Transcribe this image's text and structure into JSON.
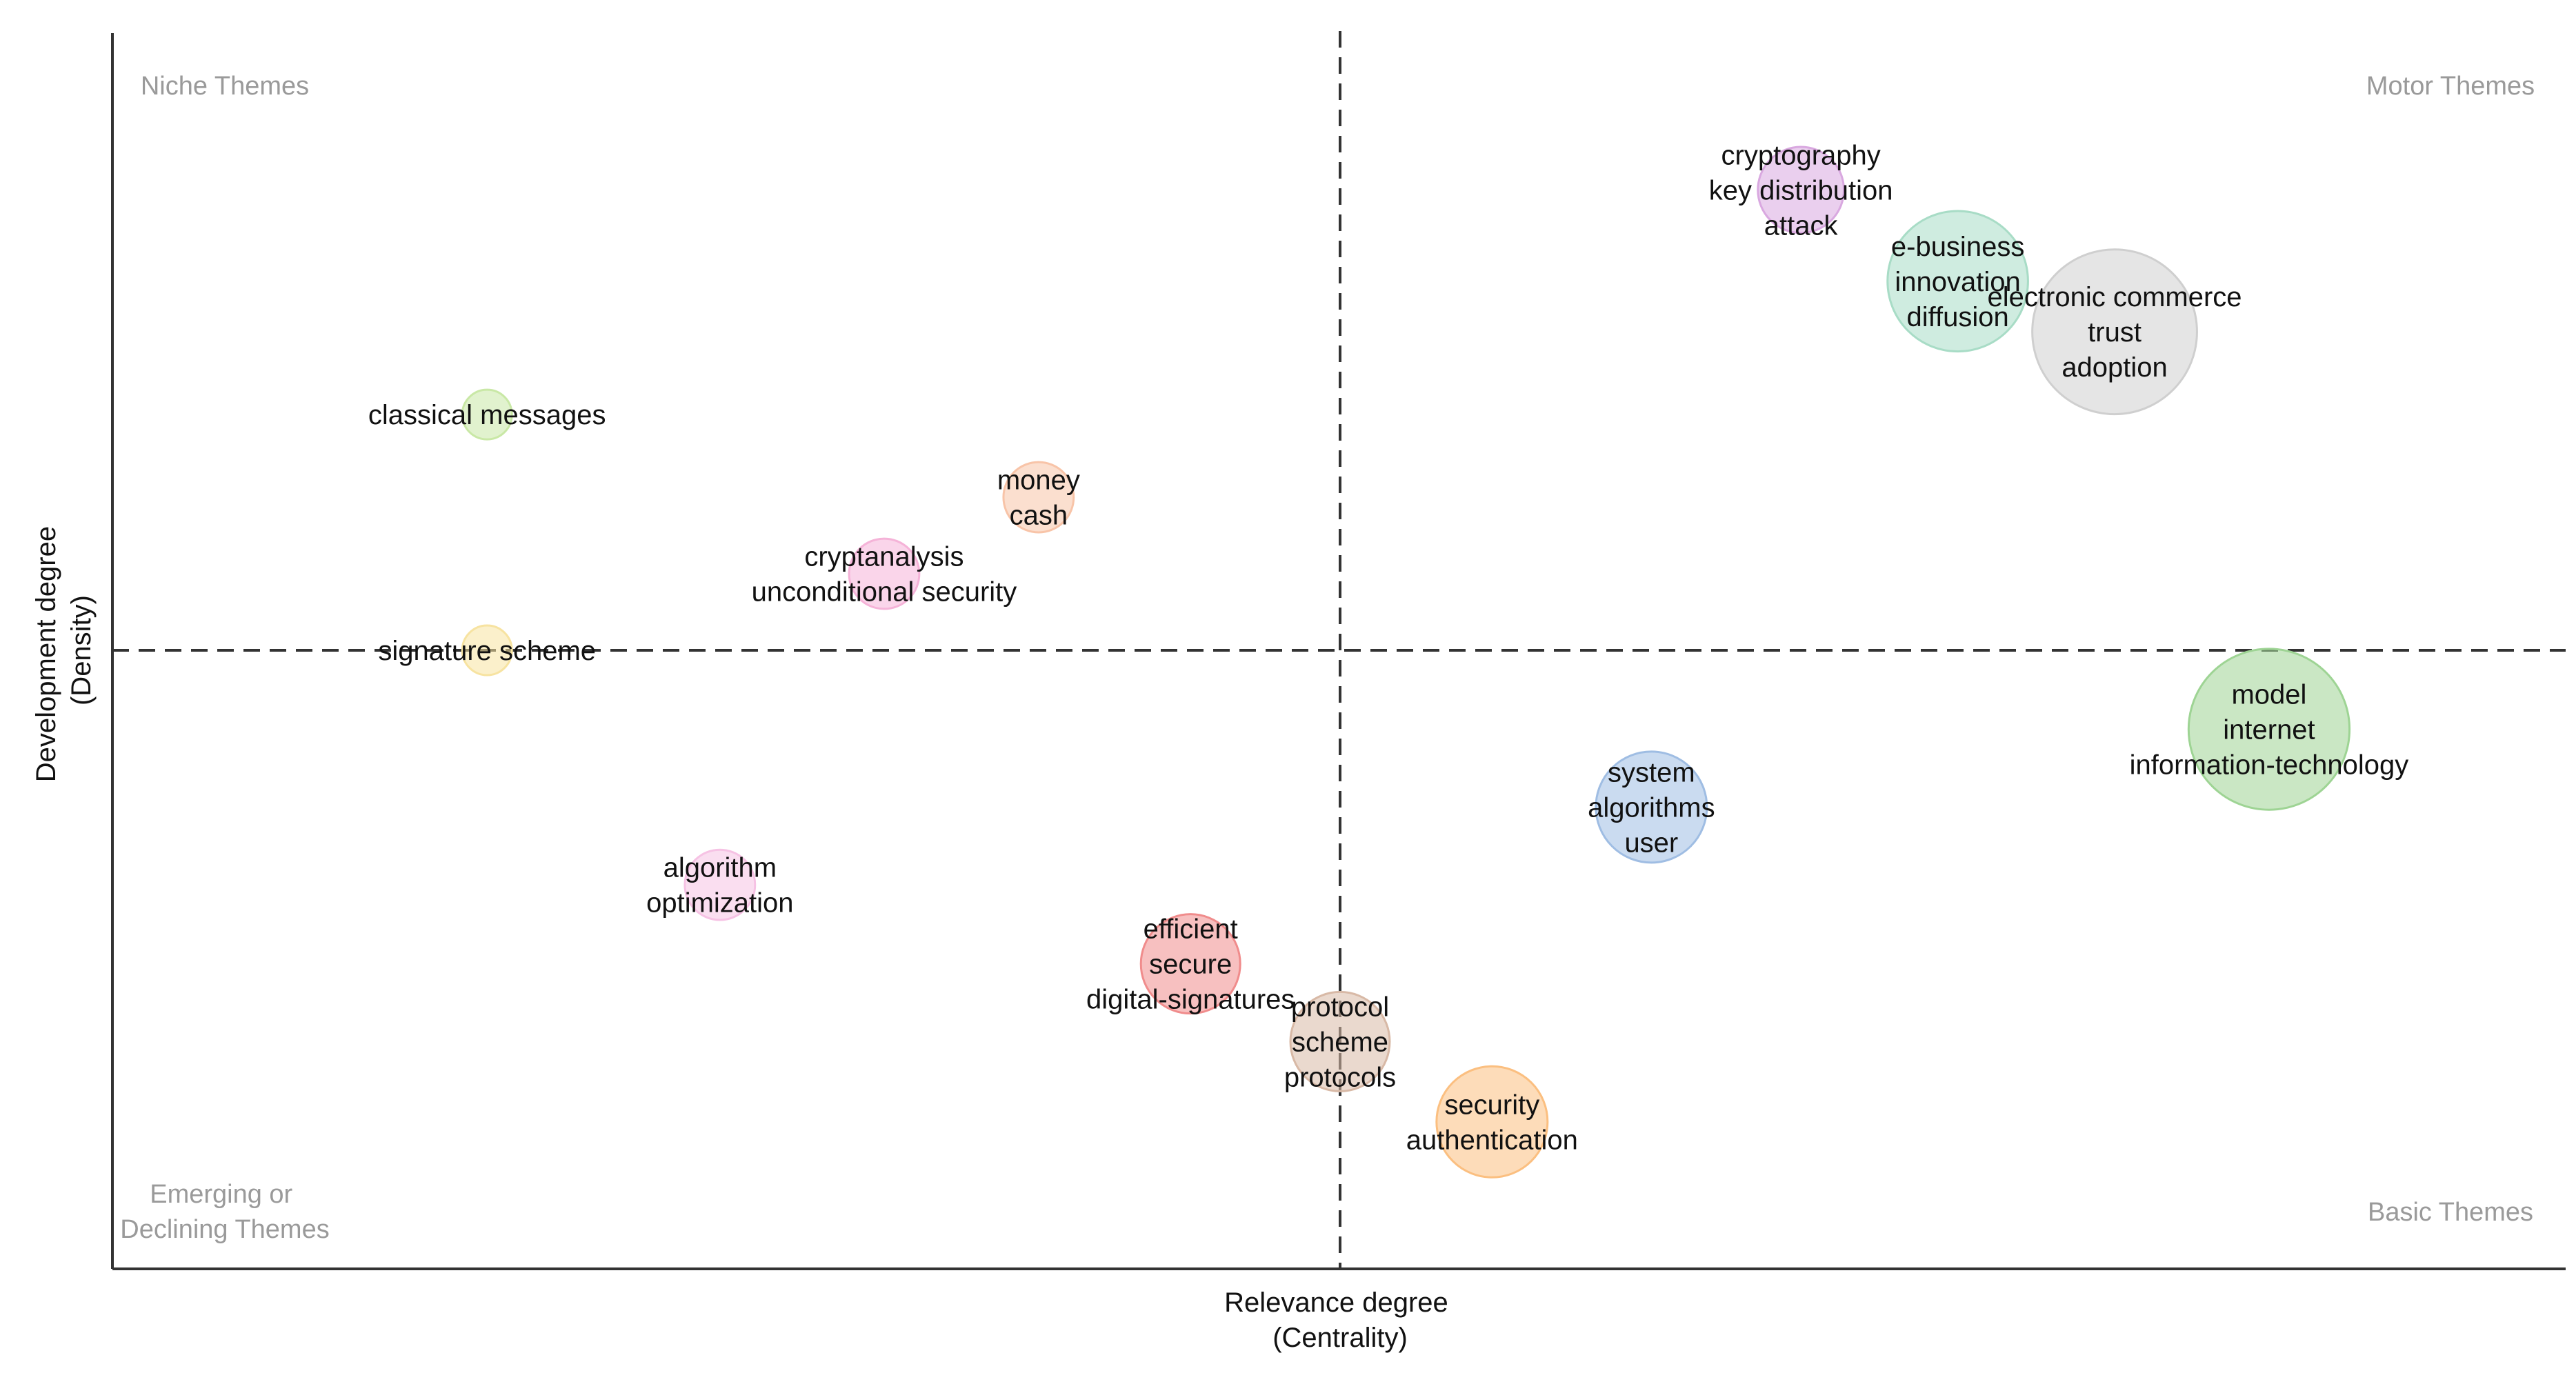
{
  "chart_data": {
    "type": "scatter",
    "title": "",
    "xlabel": [
      "Relevance degree",
      "(Centrality)"
    ],
    "ylabel": [
      "Development degree",
      "(Density)"
    ],
    "xlim": [
      0,
      100
    ],
    "ylim": [
      0,
      100
    ],
    "x_threshold": 50,
    "y_threshold": 50,
    "grid": false,
    "legend": "none",
    "quadrants": {
      "top_left": [
        "Niche Themes"
      ],
      "top_right": [
        "Motor Themes"
      ],
      "bottom_left": [
        "Emerging or",
        "Declining Themes"
      ],
      "bottom_right": [
        "Basic Themes"
      ]
    },
    "clusters": [
      {
        "labels": [
          "classical messages"
        ],
        "x": 15.2,
        "y": 69.1,
        "size": 1,
        "color": "#c9e8a6"
      },
      {
        "labels": [
          "money",
          "cash"
        ],
        "x": 37.7,
        "y": 62.4,
        "size": 2,
        "color": "#f8c4a8"
      },
      {
        "labels": [
          "cryptanalysis",
          "unconditional security"
        ],
        "x": 31.4,
        "y": 56.2,
        "size": 2,
        "color": "#f5b3d8"
      },
      {
        "labels": [
          "signature scheme"
        ],
        "x": 15.2,
        "y": 50.0,
        "size": 1,
        "color": "#f7e3a1"
      },
      {
        "labels": [
          "algorithm",
          "optimization"
        ],
        "x": 24.7,
        "y": 31.0,
        "size": 2,
        "color": "#f6c2e4"
      },
      {
        "labels": [
          "efficient",
          "secure",
          "digital-signatures"
        ],
        "x": 43.9,
        "y": 24.6,
        "size": 4,
        "color": "#f08c8c"
      },
      {
        "labels": [
          "protocol",
          "scheme",
          "protocols"
        ],
        "x": 50.0,
        "y": 18.3,
        "size": 4,
        "color": "#d8b9a6"
      },
      {
        "labels": [
          "security",
          "authentication"
        ],
        "x": 56.2,
        "y": 11.8,
        "size": 5,
        "color": "#fbbf80"
      },
      {
        "labels": [
          "system",
          "algorithms",
          "user"
        ],
        "x": 62.7,
        "y": 37.3,
        "size": 5,
        "color": "#9fbde3"
      },
      {
        "labels": [
          "cryptography",
          "key distribution",
          "attack"
        ],
        "x": 68.8,
        "y": 87.3,
        "size": 3,
        "color": "#d9a8e0"
      },
      {
        "labels": [
          "e-business",
          "innovation",
          "diffusion"
        ],
        "x": 75.2,
        "y": 79.9,
        "size": 8,
        "color": "#a8dcc6"
      },
      {
        "labels": [
          "electronic commerce",
          "trust",
          "adoption"
        ],
        "x": 81.6,
        "y": 75.8,
        "size": 11,
        "color": "#cfcfcf"
      },
      {
        "labels": [
          "model",
          "internet",
          "information-technology"
        ],
        "x": 87.9,
        "y": 43.6,
        "size": 10.5,
        "color": "#9ed494"
      }
    ]
  }
}
